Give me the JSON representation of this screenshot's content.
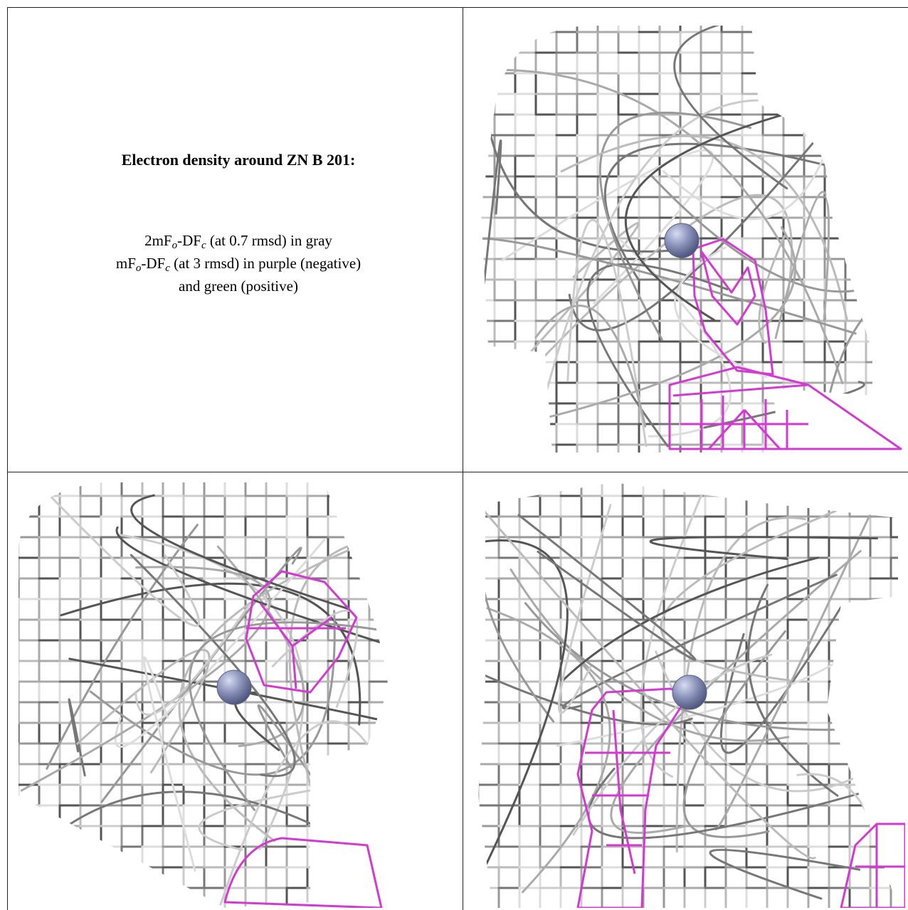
{
  "title": "Electron density around ZN B 201:",
  "legend": [
    [
      "2mF",
      "o",
      "-DF",
      "c",
      " (at 0.7 rmsd) in gray"
    ],
    [
      "mF",
      "o",
      "-DF",
      "c",
      " (at 3 rmsd) in purple (negative)"
    ],
    [
      "and green (positive)"
    ]
  ]
}
